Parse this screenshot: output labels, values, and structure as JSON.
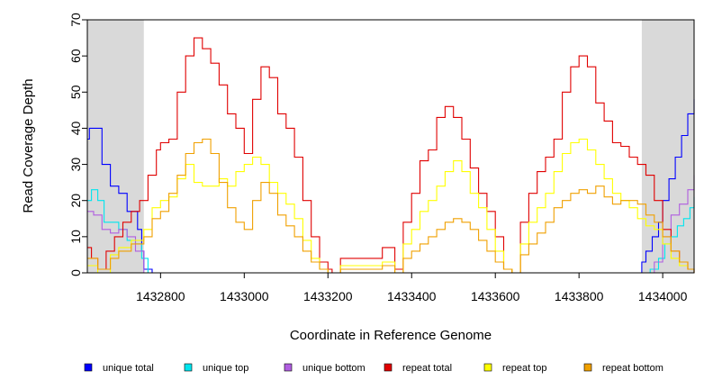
{
  "chart_data": {
    "type": "line",
    "title": "",
    "xlabel": "Coordinate in Reference Genome",
    "ylabel": "Read Coverage Depth",
    "xlim": [
      1432625,
      1434075
    ],
    "ylim": [
      0,
      70
    ],
    "xticks": [
      1432800,
      1433000,
      1433200,
      1433400,
      1433600,
      1433800,
      1434000
    ],
    "yticks": [
      0,
      10,
      20,
      30,
      40,
      50,
      60,
      70
    ],
    "shaded_regions": [
      [
        1432625,
        1432760
      ],
      [
        1433950,
        1434075
      ]
    ],
    "legend_position": "bottom",
    "series": [
      {
        "name": "unique total",
        "color": "#0000ff",
        "x": [
          1432625,
          1432630,
          1432650,
          1432660,
          1432680,
          1432700,
          1432720,
          1432735,
          1432745,
          1432755,
          1432760,
          1432780,
          1433940,
          1433950,
          1433960,
          1433975,
          1433990,
          1434000,
          1434015,
          1434030,
          1434045,
          1434060,
          1434075
        ],
        "y": [
          37,
          40,
          40,
          30,
          24,
          22,
          17,
          17,
          12,
          6,
          1,
          0,
          0,
          3,
          6,
          10,
          14,
          20,
          26,
          32,
          38,
          44,
          48
        ]
      },
      {
        "name": "unique top",
        "color": "#00e5ee",
        "x": [
          1432625,
          1432635,
          1432650,
          1432665,
          1432685,
          1432700,
          1432720,
          1432740,
          1432755,
          1432770,
          1433950,
          1433970,
          1433990,
          1434005,
          1434020,
          1434035,
          1434050,
          1434065,
          1434075
        ],
        "y": [
          20,
          23,
          20,
          14,
          14,
          12,
          9,
          8,
          4,
          0,
          0,
          1,
          4,
          8,
          10,
          13,
          15,
          18,
          21
        ]
      },
      {
        "name": "unique bottom",
        "color": "#b05ee0",
        "x": [
          1432625,
          1432640,
          1432660,
          1432680,
          1432700,
          1432720,
          1432740,
          1432760,
          1433960,
          1433980,
          1434000,
          1434020,
          1434040,
          1434060,
          1434075
        ],
        "y": [
          17,
          16,
          12,
          11,
          12,
          10,
          6,
          0,
          0,
          3,
          10,
          16,
          19,
          23,
          27
        ]
      },
      {
        "name": "repeat total",
        "color": "#e00000",
        "x": [
          1432625,
          1432635,
          1432650,
          1432670,
          1432690,
          1432710,
          1432730,
          1432750,
          1432770,
          1432790,
          1432800,
          1432820,
          1432840,
          1432860,
          1432880,
          1432900,
          1432920,
          1432940,
          1432960,
          1432980,
          1433000,
          1433020,
          1433040,
          1433060,
          1433080,
          1433100,
          1433120,
          1433140,
          1433160,
          1433180,
          1433200,
          1433210,
          1433220,
          1433230,
          1433260,
          1433300,
          1433330,
          1433360,
          1433380,
          1433400,
          1433420,
          1433440,
          1433460,
          1433480,
          1433500,
          1433520,
          1433540,
          1433560,
          1433580,
          1433600,
          1433620,
          1433640,
          1433660,
          1433680,
          1433700,
          1433720,
          1433740,
          1433760,
          1433780,
          1433800,
          1433820,
          1433840,
          1433860,
          1433880,
          1433900,
          1433920,
          1433940,
          1433960,
          1433980,
          1434000,
          1434020,
          1434040,
          1434060,
          1434075
        ],
        "y": [
          7,
          4,
          1,
          6,
          10,
          14,
          17,
          20,
          27,
          34,
          36,
          37,
          50,
          60,
          65,
          62,
          58,
          52,
          44,
          40,
          33,
          48,
          57,
          54,
          44,
          40,
          32,
          20,
          10,
          3,
          1,
          0,
          0,
          4,
          4,
          4,
          7,
          1,
          14,
          22,
          31,
          34,
          43,
          46,
          43,
          37,
          29,
          22,
          17,
          10,
          1,
          0,
          14,
          22,
          28,
          32,
          37,
          50,
          57,
          60,
          57,
          47,
          42,
          36,
          35,
          32,
          30,
          27,
          20,
          12,
          6,
          3,
          1,
          0
        ]
      },
      {
        "name": "repeat top",
        "color": "#ffff00",
        "x": [
          1432625,
          1432650,
          1432680,
          1432700,
          1432730,
          1432760,
          1432780,
          1432800,
          1432820,
          1432840,
          1432860,
          1432880,
          1432900,
          1432920,
          1432940,
          1432960,
          1432980,
          1433000,
          1433020,
          1433040,
          1433060,
          1433080,
          1433100,
          1433120,
          1433140,
          1433160,
          1433180,
          1433200,
          1433210,
          1433220,
          1433230,
          1433260,
          1433300,
          1433330,
          1433360,
          1433380,
          1433400,
          1433420,
          1433440,
          1433460,
          1433480,
          1433500,
          1433520,
          1433540,
          1433560,
          1433580,
          1433600,
          1433620,
          1433640,
          1433660,
          1433680,
          1433700,
          1433720,
          1433740,
          1433760,
          1433780,
          1433800,
          1433820,
          1433840,
          1433860,
          1433880,
          1433900,
          1433920,
          1433940,
          1433960,
          1433980,
          1434000,
          1434020,
          1434040,
          1434060,
          1434075
        ],
        "y": [
          2,
          0,
          5,
          7,
          9,
          12,
          18,
          20,
          21,
          26,
          30,
          25,
          24,
          24,
          26,
          24,
          28,
          30,
          32,
          30,
          25,
          22,
          19,
          15,
          9,
          4,
          1,
          0,
          0,
          0,
          2,
          2,
          2,
          3,
          0,
          8,
          12,
          17,
          20,
          24,
          28,
          31,
          28,
          22,
          18,
          12,
          6,
          1,
          0,
          8,
          14,
          18,
          22,
          28,
          33,
          36,
          37,
          34,
          30,
          26,
          22,
          20,
          18,
          15,
          13,
          12,
          8,
          4,
          2,
          1,
          0
        ]
      },
      {
        "name": "repeat bottom",
        "color": "#f0a000",
        "x": [
          1432625,
          1432650,
          1432680,
          1432700,
          1432730,
          1432760,
          1432780,
          1432800,
          1432820,
          1432840,
          1432860,
          1432880,
          1432900,
          1432920,
          1432940,
          1432960,
          1432980,
          1433000,
          1433020,
          1433040,
          1433060,
          1433080,
          1433100,
          1433120,
          1433140,
          1433160,
          1433180,
          1433200,
          1433210,
          1433220,
          1433230,
          1433260,
          1433300,
          1433330,
          1433360,
          1433380,
          1433400,
          1433420,
          1433440,
          1433460,
          1433480,
          1433500,
          1433520,
          1433540,
          1433560,
          1433580,
          1433600,
          1433620,
          1433640,
          1433660,
          1433680,
          1433700,
          1433720,
          1433740,
          1433760,
          1433780,
          1433800,
          1433820,
          1433840,
          1433860,
          1433880,
          1433900,
          1433920,
          1433940,
          1433960,
          1433980,
          1434000,
          1434020,
          1434040,
          1434060,
          1434075
        ],
        "y": [
          4,
          1,
          4,
          6,
          8,
          10,
          15,
          17,
          22,
          27,
          33,
          36,
          37,
          33,
          25,
          18,
          14,
          12,
          20,
          25,
          22,
          16,
          13,
          10,
          6,
          3,
          1,
          0,
          0,
          0,
          1,
          1,
          1,
          2,
          0,
          4,
          6,
          8,
          10,
          12,
          14,
          15,
          14,
          12,
          9,
          6,
          3,
          1,
          0,
          5,
          8,
          11,
          14,
          18,
          20,
          22,
          23,
          22,
          24,
          21,
          19,
          20,
          20,
          19,
          16,
          14,
          10,
          6,
          3,
          1,
          0
        ]
      }
    ]
  }
}
